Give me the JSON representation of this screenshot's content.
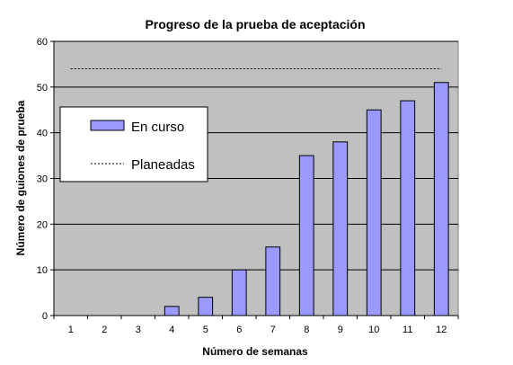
{
  "chart_data": {
    "type": "bar",
    "title": "Progreso de la prueba de aceptación",
    "xlabel": "Número de semanas",
    "ylabel": "Número de guiones de prueba",
    "categories": [
      "1",
      "2",
      "3",
      "4",
      "5",
      "6",
      "7",
      "8",
      "9",
      "10",
      "11",
      "12"
    ],
    "series": [
      {
        "name": "En curso",
        "type": "bar",
        "values": [
          0,
          0,
          0,
          2,
          4,
          10,
          15,
          35,
          38,
          45,
          47,
          51
        ]
      },
      {
        "name": "Planeadas",
        "type": "line",
        "style": "dotted",
        "values": [
          54,
          54,
          54,
          54,
          54,
          54,
          54,
          54,
          54,
          54,
          54,
          54
        ]
      }
    ],
    "ylim": [
      0,
      60
    ],
    "yticks": [
      "0",
      "10",
      "20",
      "30",
      "40",
      "50",
      "60"
    ],
    "grid": true,
    "legend_position": "left",
    "colors": {
      "plot_background": "#c0c0c0",
      "bar_fill": "#9999ff",
      "bar_stroke": "#000000",
      "planned_line": "#000000"
    }
  }
}
